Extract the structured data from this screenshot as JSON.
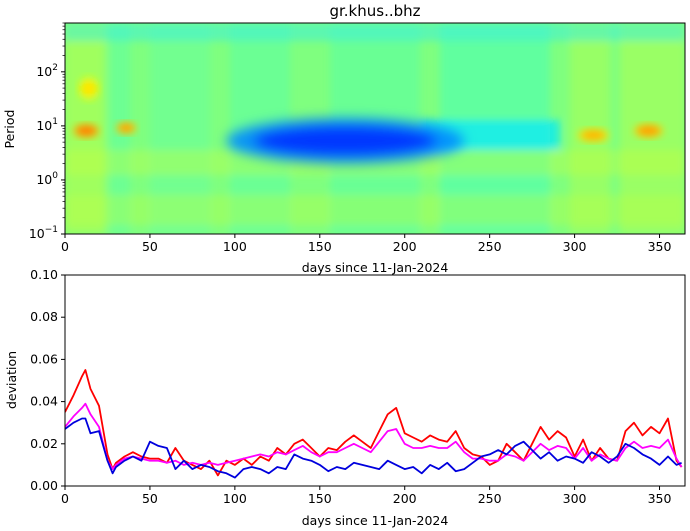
{
  "chart_data": [
    {
      "type": "heatmap",
      "title": "gr.khus..bhz",
      "xlabel": "days since 11-Jan-2024",
      "ylabel": "Period",
      "xlim": [
        0,
        365
      ],
      "ylim": [
        0.1,
        800
      ],
      "y_scale": "log",
      "x_ticks": [
        "0",
        "50",
        "100",
        "150",
        "200",
        "250",
        "300",
        "350"
      ],
      "y_ticks": [
        {
          "base": "10",
          "exp": "−1",
          "value": 0.1
        },
        {
          "base": "10",
          "exp": "0",
          "value": 1
        },
        {
          "base": "10",
          "exp": "1",
          "value": 10
        },
        {
          "base": "10",
          "exp": "2",
          "value": 100
        }
      ],
      "colormap": "jet",
      "features": [
        {
          "label": "low anomaly",
          "x": [
            95,
            235
          ],
          "y": [
            2,
            14
          ],
          "level": 0.18
        },
        {
          "label": "high anomaly",
          "x": [
            5,
            20
          ],
          "y": [
            6,
            11
          ],
          "level": 0.75
        },
        {
          "label": "high anomaly",
          "x": [
            30,
            42
          ],
          "y": [
            7,
            12
          ],
          "level": 0.72
        },
        {
          "label": "high anomaly",
          "x": [
            302,
            320
          ],
          "y": [
            5,
            9
          ],
          "level": 0.7
        },
        {
          "label": "high anomaly",
          "x": [
            335,
            352
          ],
          "y": [
            6,
            11
          ],
          "level": 0.72
        },
        {
          "label": "high anomaly",
          "x": [
            8,
            20
          ],
          "y": [
            30,
            80
          ],
          "level": 0.65
        }
      ],
      "grid": false
    },
    {
      "type": "line",
      "title": "",
      "xlabel": "days since 11-Jan-2024",
      "ylabel": "deviation",
      "xlim": [
        0,
        365
      ],
      "ylim": [
        0,
        0.1
      ],
      "x_ticks": [
        "0",
        "50",
        "100",
        "150",
        "200",
        "250",
        "300",
        "350"
      ],
      "y_ticks": [
        "0.00",
        "0.02",
        "0.04",
        "0.06",
        "0.08",
        "0.10"
      ],
      "grid": false,
      "series": [
        {
          "color": "#ff0000",
          "x": [
            0,
            5,
            10,
            12,
            15,
            20,
            25,
            28,
            30,
            35,
            40,
            45,
            50,
            55,
            60,
            65,
            70,
            75,
            80,
            85,
            90,
            95,
            100,
            105,
            110,
            115,
            120,
            125,
            130,
            135,
            140,
            145,
            150,
            155,
            160,
            165,
            170,
            175,
            180,
            185,
            190,
            195,
            200,
            205,
            210,
            215,
            220,
            225,
            230,
            235,
            240,
            245,
            250,
            255,
            260,
            265,
            270,
            275,
            280,
            285,
            290,
            295,
            300,
            305,
            310,
            315,
            320,
            325,
            330,
            335,
            340,
            345,
            350,
            355,
            360,
            363
          ],
          "y": [
            0.035,
            0.043,
            0.052,
            0.055,
            0.046,
            0.038,
            0.015,
            0.008,
            0.011,
            0.014,
            0.016,
            0.014,
            0.013,
            0.013,
            0.011,
            0.018,
            0.012,
            0.01,
            0.008,
            0.012,
            0.005,
            0.012,
            0.01,
            0.013,
            0.01,
            0.014,
            0.012,
            0.018,
            0.015,
            0.02,
            0.022,
            0.018,
            0.014,
            0.018,
            0.017,
            0.021,
            0.024,
            0.021,
            0.018,
            0.026,
            0.034,
            0.037,
            0.025,
            0.023,
            0.021,
            0.024,
            0.022,
            0.021,
            0.026,
            0.018,
            0.015,
            0.014,
            0.01,
            0.012,
            0.02,
            0.016,
            0.012,
            0.02,
            0.028,
            0.022,
            0.026,
            0.023,
            0.014,
            0.022,
            0.012,
            0.018,
            0.013,
            0.012,
            0.026,
            0.03,
            0.024,
            0.028,
            0.025,
            0.032,
            0.012,
            0.009
          ]
        },
        {
          "color": "#ff00ff",
          "x": [
            0,
            5,
            10,
            12,
            15,
            20,
            25,
            28,
            30,
            35,
            40,
            45,
            50,
            55,
            60,
            65,
            70,
            75,
            80,
            85,
            90,
            95,
            100,
            105,
            110,
            115,
            120,
            125,
            130,
            135,
            140,
            145,
            150,
            155,
            160,
            165,
            170,
            175,
            180,
            185,
            190,
            195,
            200,
            205,
            210,
            215,
            220,
            225,
            230,
            235,
            240,
            245,
            250,
            255,
            260,
            265,
            270,
            275,
            280,
            285,
            290,
            295,
            300,
            305,
            310,
            315,
            320,
            325,
            330,
            335,
            340,
            345,
            350,
            355,
            360,
            363
          ],
          "y": [
            0.028,
            0.033,
            0.037,
            0.039,
            0.034,
            0.028,
            0.012,
            0.008,
            0.01,
            0.013,
            0.014,
            0.013,
            0.012,
            0.012,
            0.011,
            0.012,
            0.01,
            0.011,
            0.01,
            0.011,
            0.01,
            0.011,
            0.012,
            0.013,
            0.014,
            0.015,
            0.014,
            0.016,
            0.015,
            0.017,
            0.019,
            0.016,
            0.014,
            0.016,
            0.016,
            0.018,
            0.02,
            0.018,
            0.016,
            0.021,
            0.026,
            0.027,
            0.02,
            0.018,
            0.018,
            0.019,
            0.018,
            0.018,
            0.021,
            0.016,
            0.013,
            0.013,
            0.012,
            0.012,
            0.015,
            0.014,
            0.012,
            0.016,
            0.02,
            0.017,
            0.019,
            0.018,
            0.013,
            0.018,
            0.012,
            0.015,
            0.013,
            0.012,
            0.018,
            0.021,
            0.018,
            0.019,
            0.018,
            0.022,
            0.013,
            0.009
          ]
        },
        {
          "color": "#0000dd",
          "x": [
            0,
            5,
            10,
            12,
            15,
            20,
            25,
            28,
            30,
            35,
            40,
            45,
            50,
            55,
            60,
            65,
            70,
            75,
            80,
            85,
            90,
            95,
            100,
            105,
            110,
            115,
            120,
            125,
            130,
            135,
            140,
            145,
            150,
            155,
            160,
            165,
            170,
            175,
            180,
            185,
            190,
            195,
            200,
            205,
            210,
            215,
            220,
            225,
            230,
            235,
            240,
            245,
            250,
            255,
            260,
            265,
            270,
            275,
            280,
            285,
            290,
            295,
            300,
            305,
            310,
            315,
            320,
            325,
            330,
            335,
            340,
            345,
            350,
            355,
            360,
            363
          ],
          "y": [
            0.027,
            0.03,
            0.032,
            0.032,
            0.025,
            0.026,
            0.012,
            0.006,
            0.009,
            0.012,
            0.014,
            0.012,
            0.021,
            0.019,
            0.018,
            0.008,
            0.012,
            0.008,
            0.01,
            0.009,
            0.007,
            0.006,
            0.004,
            0.008,
            0.009,
            0.008,
            0.006,
            0.009,
            0.008,
            0.015,
            0.013,
            0.012,
            0.01,
            0.007,
            0.009,
            0.008,
            0.011,
            0.01,
            0.009,
            0.008,
            0.012,
            0.01,
            0.008,
            0.009,
            0.006,
            0.01,
            0.008,
            0.011,
            0.007,
            0.008,
            0.011,
            0.014,
            0.015,
            0.017,
            0.015,
            0.019,
            0.021,
            0.017,
            0.013,
            0.016,
            0.012,
            0.014,
            0.013,
            0.011,
            0.016,
            0.014,
            0.011,
            0.014,
            0.02,
            0.018,
            0.015,
            0.013,
            0.01,
            0.014,
            0.01,
            0.011
          ]
        }
      ]
    }
  ]
}
